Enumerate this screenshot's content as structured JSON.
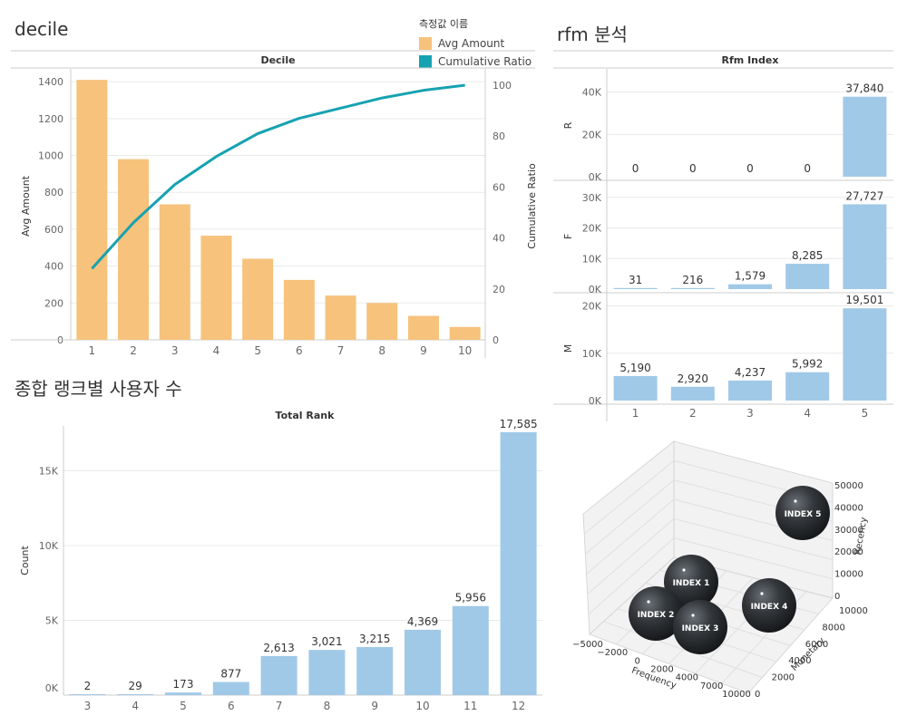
{
  "colors": {
    "bar_orange": "#F6C27C",
    "line_teal": "#16A2B1",
    "bar_blue": "#A0C9E8",
    "grid": "#EAEAEA",
    "axis": "#CCCCCC",
    "sphere": "#2E3134"
  },
  "sections": {
    "decile": "decile",
    "rfm": "rfm 분석",
    "rank": "종합 랭크별 사용자 수"
  },
  "legend": {
    "title": "측정값 이름",
    "items": [
      {
        "label": "Avg Amount",
        "color": "#F6C27C"
      },
      {
        "label": "Cumulative Ratio",
        "color": "#16A2B1"
      }
    ]
  },
  "chart_data": [
    {
      "type": "bar",
      "title": "Decile",
      "xlabel": "",
      "ylabel": "Avg Amount",
      "y2label": "Cumulative Ratio",
      "categories": [
        "1",
        "2",
        "3",
        "4",
        "5",
        "6",
        "7",
        "8",
        "9",
        "10"
      ],
      "ylim": [
        0,
        1450
      ],
      "y2lim": [
        0,
        105
      ],
      "yticks": [
        0,
        200,
        400,
        600,
        800,
        1000,
        1200,
        1400
      ],
      "y2ticks": [
        0,
        20,
        40,
        60,
        80,
        100
      ],
      "series": [
        {
          "name": "Avg Amount",
          "kind": "bar",
          "values": [
            1410,
            980,
            735,
            565,
            440,
            325,
            240,
            200,
            130,
            70
          ]
        },
        {
          "name": "Cumulative Ratio",
          "kind": "line",
          "values": [
            28,
            46,
            61,
            72,
            81,
            87,
            91,
            95,
            98,
            100
          ]
        }
      ]
    },
    {
      "type": "bar",
      "title": "Rfm Index",
      "categories": [
        "1",
        "2",
        "3",
        "4",
        "5"
      ],
      "panels": [
        {
          "name": "R",
          "values": [
            0,
            0,
            0,
            0,
            37840
          ],
          "labels": [
            "0",
            "0",
            "0",
            "0",
            "37,840"
          ],
          "ylim": [
            0,
            45000
          ],
          "yticks": [
            0,
            20000,
            40000
          ],
          "yticklabels": [
            "0K",
            "20K",
            "40K"
          ]
        },
        {
          "name": "F",
          "values": [
            31,
            216,
            1579,
            8285,
            27727
          ],
          "labels": [
            "31",
            "216",
            "1,579",
            "8,285",
            "27,727"
          ],
          "ylim": [
            0,
            32000
          ],
          "yticks": [
            0,
            10000,
            20000,
            30000
          ],
          "yticklabels": [
            "0K",
            "10K",
            "20K",
            "30K"
          ]
        },
        {
          "name": "M",
          "values": [
            5190,
            2920,
            4237,
            5992,
            19501
          ],
          "labels": [
            "5,190",
            "2,920",
            "4,237",
            "5,992",
            "19,501"
          ],
          "ylim": [
            0,
            20500
          ],
          "yticks": [
            0,
            10000,
            20000
          ],
          "yticklabels": [
            "0K",
            "10K",
            "20K"
          ]
        }
      ]
    },
    {
      "type": "bar",
      "title": "Total Rank",
      "xlabel": "",
      "ylabel": "Count",
      "categories": [
        "3",
        "4",
        "5",
        "6",
        "7",
        "8",
        "9",
        "10",
        "11",
        "12"
      ],
      "values": [
        2,
        29,
        173,
        877,
        2613,
        3021,
        3215,
        4369,
        5956,
        17585
      ],
      "labels": [
        "2",
        "29",
        "173",
        "877",
        "2,613",
        "3,021",
        "3,215",
        "4,369",
        "5,956",
        "17,585"
      ],
      "ylim": [
        0,
        18000
      ],
      "yticks": [
        0,
        5000,
        10000,
        15000
      ],
      "yticklabels": [
        "0K",
        "5K",
        "10K",
        "15K"
      ]
    },
    {
      "type": "scatter",
      "title": "",
      "xlabel": "Frequency",
      "ylabel": "Monetary",
      "zlabel": "Recency",
      "xticks": [
        "−5000",
        "−2000",
        "0",
        "2000",
        "4000",
        "7000",
        "10000"
      ],
      "yticks": [
        "0",
        "2000",
        "4000",
        "6000",
        "8000",
        "10000"
      ],
      "zticks": [
        "0",
        "10000",
        "20000",
        "30000",
        "40000",
        "50000"
      ],
      "points": [
        {
          "label": "INDEX 1"
        },
        {
          "label": "INDEX 2"
        },
        {
          "label": "INDEX 3"
        },
        {
          "label": "INDEX 4"
        },
        {
          "label": "INDEX 5"
        }
      ]
    }
  ]
}
